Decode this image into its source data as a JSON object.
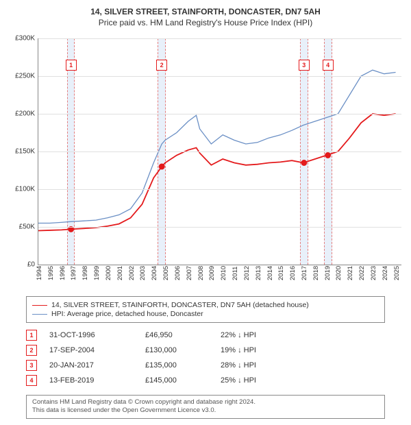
{
  "title": "14, SILVER STREET, STAINFORTH, DONCASTER, DN7 5AH",
  "subtitle": "Price paid vs. HM Land Registry's House Price Index (HPI)",
  "chart": {
    "type": "line",
    "background_color": "#ffffff",
    "grid_color": "#e0e0e0",
    "axis_color": "#888888",
    "band_color": "#e8f0fa",
    "band_border_color": "#e57d7d",
    "x_years": [
      1994,
      1995,
      1996,
      1997,
      1998,
      1999,
      2000,
      2001,
      2002,
      2003,
      2004,
      2005,
      2006,
      2007,
      2008,
      2009,
      2010,
      2011,
      2012,
      2013,
      2014,
      2015,
      2016,
      2017,
      2018,
      2019,
      2020,
      2021,
      2022,
      2023,
      2024,
      2025
    ],
    "xlim": [
      1994,
      2025.5
    ],
    "y_ticks": [
      0,
      50000,
      100000,
      150000,
      200000,
      250000,
      300000
    ],
    "y_tick_labels": [
      "£0",
      "£50K",
      "£100K",
      "£150K",
      "£200K",
      "£250K",
      "£300K"
    ],
    "ylim": [
      0,
      300000
    ],
    "label_fontsize": 10,
    "series": [
      {
        "name": "hpi",
        "color": "#6a8fc5",
        "line_width": 1.3,
        "points": [
          [
            1994,
            55000
          ],
          [
            1995,
            55000
          ],
          [
            1996,
            56000
          ],
          [
            1996.83,
            57000
          ],
          [
            1998,
            58000
          ],
          [
            1999,
            59000
          ],
          [
            2000,
            62000
          ],
          [
            2001,
            66000
          ],
          [
            2002,
            74000
          ],
          [
            2003,
            95000
          ],
          [
            2004,
            135000
          ],
          [
            2004.71,
            160000
          ],
          [
            2005,
            165000
          ],
          [
            2006,
            175000
          ],
          [
            2007,
            190000
          ],
          [
            2007.7,
            198000
          ],
          [
            2008,
            180000
          ],
          [
            2009,
            160000
          ],
          [
            2010,
            172000
          ],
          [
            2011,
            165000
          ],
          [
            2012,
            160000
          ],
          [
            2013,
            162000
          ],
          [
            2014,
            168000
          ],
          [
            2015,
            172000
          ],
          [
            2016,
            178000
          ],
          [
            2017,
            185000
          ],
          [
            2018,
            190000
          ],
          [
            2019,
            195000
          ],
          [
            2020,
            200000
          ],
          [
            2021,
            225000
          ],
          [
            2022,
            250000
          ],
          [
            2023,
            258000
          ],
          [
            2024,
            253000
          ],
          [
            2025,
            255000
          ]
        ]
      },
      {
        "name": "property",
        "color": "#e41a1c",
        "line_width": 1.8,
        "points": [
          [
            1994,
            45000
          ],
          [
            1995,
            45500
          ],
          [
            1996,
            46000
          ],
          [
            1996.83,
            46950
          ],
          [
            1998,
            48000
          ],
          [
            1999,
            49000
          ],
          [
            2000,
            51000
          ],
          [
            2001,
            54000
          ],
          [
            2002,
            62000
          ],
          [
            2003,
            80000
          ],
          [
            2004,
            115000
          ],
          [
            2004.71,
            130000
          ],
          [
            2005,
            135000
          ],
          [
            2006,
            145000
          ],
          [
            2007,
            152000
          ],
          [
            2007.7,
            155000
          ],
          [
            2008,
            148000
          ],
          [
            2009,
            132000
          ],
          [
            2010,
            140000
          ],
          [
            2011,
            135000
          ],
          [
            2012,
            132000
          ],
          [
            2013,
            133000
          ],
          [
            2014,
            135000
          ],
          [
            2015,
            136000
          ],
          [
            2016,
            138000
          ],
          [
            2017,
            135000
          ],
          [
            2018,
            140000
          ],
          [
            2019,
            145000
          ],
          [
            2020,
            150000
          ],
          [
            2021,
            168000
          ],
          [
            2022,
            188000
          ],
          [
            2023,
            200000
          ],
          [
            2024,
            198000
          ],
          [
            2025,
            200000
          ]
        ]
      }
    ],
    "sale_markers": [
      {
        "n": "1",
        "x": 1996.83,
        "y": 46950,
        "badge_y": 265000
      },
      {
        "n": "2",
        "x": 2004.71,
        "y": 130000,
        "badge_y": 265000
      },
      {
        "n": "3",
        "x": 2017.05,
        "y": 135000,
        "badge_y": 265000
      },
      {
        "n": "4",
        "x": 2019.12,
        "y": 145000,
        "badge_y": 265000
      }
    ],
    "band_halfwidth_years": 0.35
  },
  "legend": {
    "items": [
      {
        "color": "#e41a1c",
        "width": 1.8,
        "label": "14, SILVER STREET, STAINFORTH, DONCASTER, DN7 5AH (detached house)"
      },
      {
        "color": "#6a8fc5",
        "width": 1.3,
        "label": "HPI: Average price, detached house, Doncaster"
      }
    ]
  },
  "sales": [
    {
      "n": "1",
      "date": "31-OCT-1996",
      "price": "£46,950",
      "pct": "22% ↓ HPI"
    },
    {
      "n": "2",
      "date": "17-SEP-2004",
      "price": "£130,000",
      "pct": "19% ↓ HPI"
    },
    {
      "n": "3",
      "date": "20-JAN-2017",
      "price": "£135,000",
      "pct": "28% ↓ HPI"
    },
    {
      "n": "4",
      "date": "13-FEB-2019",
      "price": "£145,000",
      "pct": "25% ↓ HPI"
    }
  ],
  "attribution": {
    "line1": "Contains HM Land Registry data © Crown copyright and database right 2024.",
    "line2": "This data is licensed under the Open Government Licence v3.0."
  }
}
